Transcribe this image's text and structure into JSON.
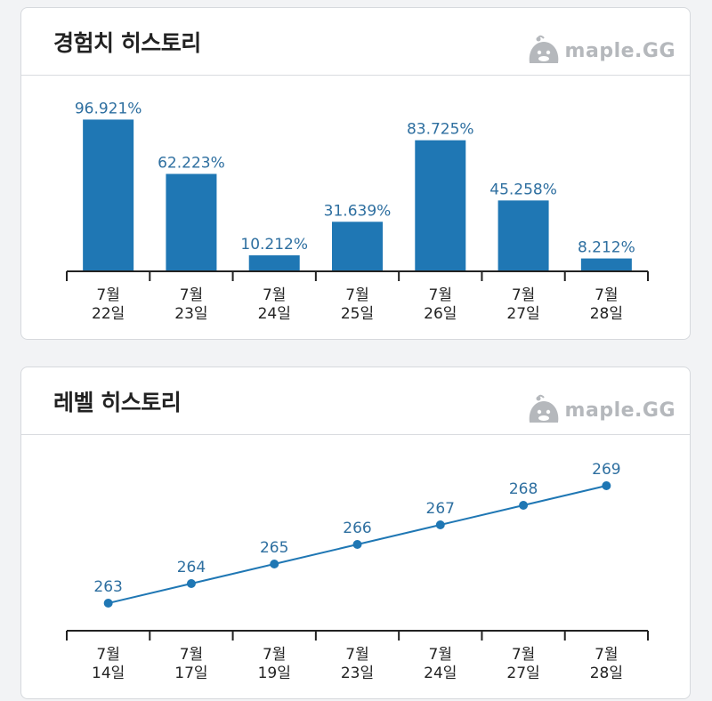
{
  "brand": {
    "label": "maple.GG",
    "icon": "slime-icon"
  },
  "colors": {
    "accent": "#1f77b4",
    "label": "#2e6fa0",
    "axis": "#222222"
  },
  "exp_card": {
    "title": "경험치 히스토리"
  },
  "level_card": {
    "title": "레벨 히스토리"
  },
  "chart_data": [
    {
      "type": "bar",
      "categories": [
        "7월\n22일",
        "7월\n23일",
        "7월\n24일",
        "7월\n25일",
        "7월\n26일",
        "7월\n27일",
        "7월\n28일"
      ],
      "values": [
        96.921,
        62.223,
        10.212,
        31.639,
        83.725,
        45.258,
        8.212
      ],
      "value_labels": [
        "96.921%",
        "62.223%",
        "10.212%",
        "31.639%",
        "83.725%",
        "45.258%",
        "8.212%"
      ],
      "ylim": [
        0,
        100
      ],
      "grid": false
    },
    {
      "type": "line",
      "categories": [
        "7월\n14일",
        "7월\n17일",
        "7월\n19일",
        "7월\n23일",
        "7월\n24일",
        "7월\n27일",
        "7월\n28일"
      ],
      "values": [
        263,
        264,
        265,
        266,
        267,
        268,
        269
      ],
      "value_labels": [
        "263",
        "264",
        "265",
        "266",
        "267",
        "268",
        "269"
      ],
      "grid": false
    }
  ]
}
